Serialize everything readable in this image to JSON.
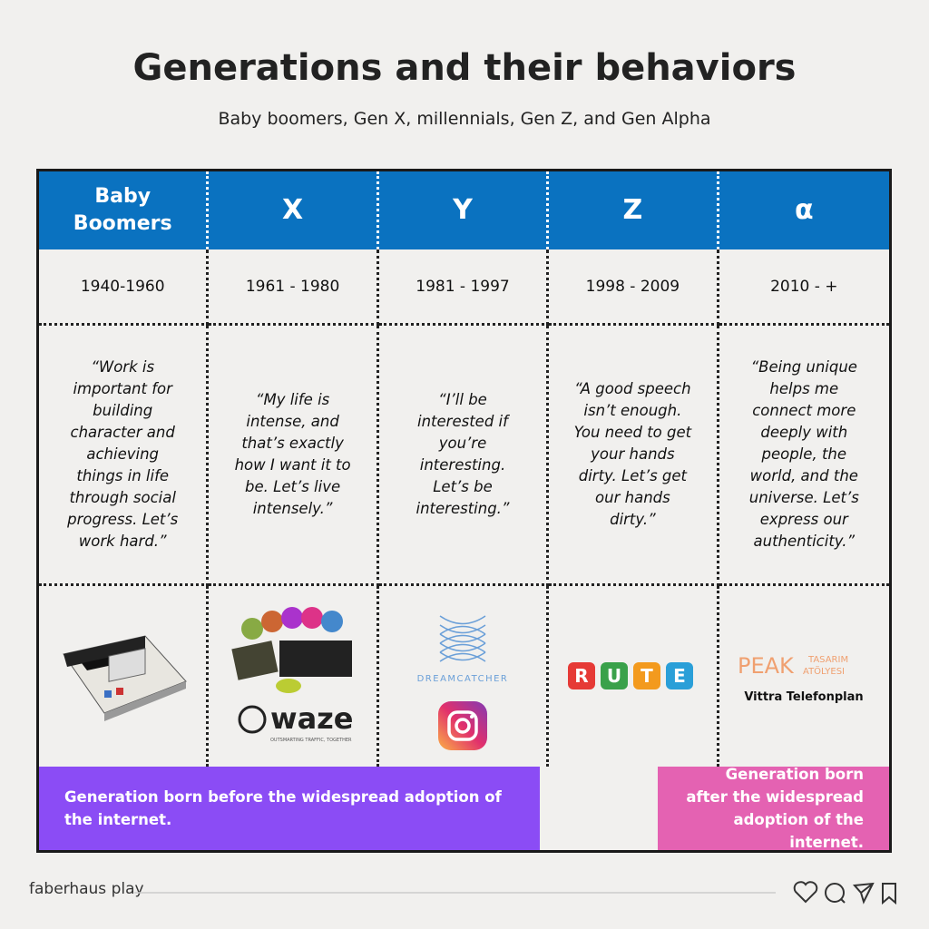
{
  "header": {
    "title": "Generations and their behaviors",
    "subtitle": "Baby boomers, Gen X, millennials, Gen Z, and Gen Alpha"
  },
  "table": {
    "headers": [
      "Baby Boomers",
      "X",
      "Y",
      "Z",
      "α"
    ],
    "years": [
      "1940-1960",
      "1961 - 1980",
      "1981 - 1997",
      "1998 - 2009",
      "2010 - +"
    ],
    "quotes": [
      "“Work is important for building character and achieving things in life through social progress. Let’s work hard.”",
      "“My life is intense, and that’s exactly how I want it to be. Let’s live intensely.”",
      "“I’ll be interested if you’re interesting. Let’s be interesting.”",
      "“A good speech isn’t enough. You need to get your hands dirty. Let’s get our hands dirty.”",
      "“Being unique helps me connect more deeply with people, the world, and the universe. Let’s express our authenticity.”"
    ],
    "logos": {
      "waze": "waze",
      "waze_tagline": "OUTSMARTING TRAFFIC, TOGETHER",
      "dreamcatcher": "DREAMCATCHER",
      "rute": [
        "R",
        "U",
        "T",
        "E"
      ],
      "peak": "PEAK",
      "peak_sub": [
        "TASARIM",
        "ATÖLYESI"
      ],
      "vittra": "Vittra Telefonplan"
    },
    "banners": [
      "Generation born before the widespread adoption of the internet.",
      "Generation born after the widespread adoption of the internet."
    ]
  },
  "footer": {
    "brand": "faberhaus play"
  }
}
